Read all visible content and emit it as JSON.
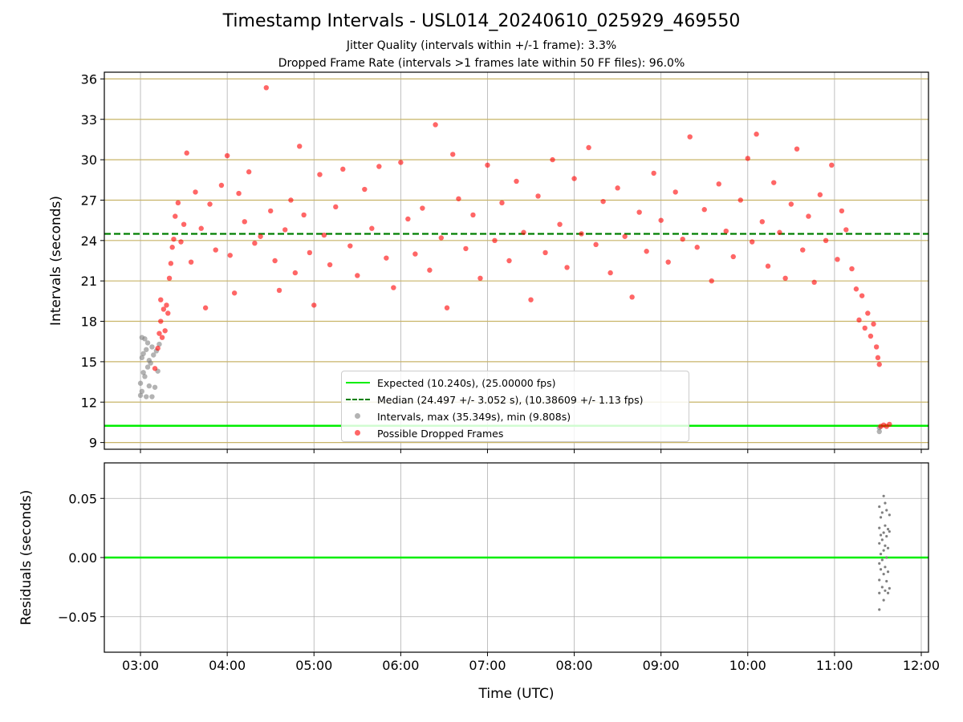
{
  "title": "Timestamp Intervals - USL014_20240610_025929_469550",
  "subtitle_1": "Jitter Quality (intervals within +/-1 frame): 3.3%",
  "subtitle_2": "Dropped Frame Rate (intervals >1 frames late within 50 FF files): 96.0%",
  "colors": {
    "expected": "#00ee00",
    "median": "#007f00",
    "intervals": "#808080",
    "dropped": "#ff0000",
    "hgrid_top": "#c8b468",
    "grid": "#b0b0b0"
  },
  "legend": {
    "expected": "Expected (10.240s), (25.00000 fps)",
    "median": "Median (24.497 +/- 3.052 s), (10.38609 +/- 1.13 fps)",
    "intervals": "Intervals, max (35.349s), min (9.808s)",
    "dropped": "Possible Dropped Frames"
  },
  "chart_data": [
    {
      "type": "scatter",
      "ylabel": "Intervals (seconds)",
      "xlim": [
        "02:35",
        "12:05"
      ],
      "ylim": [
        8.5,
        36.5
      ],
      "y_ticks": [
        9,
        12,
        15,
        18,
        21,
        24,
        27,
        30,
        33,
        36
      ],
      "y_tick_labels": [
        "9",
        "12",
        "15",
        "18",
        "21",
        "24",
        "27",
        "30",
        "33",
        "36"
      ],
      "grid": true,
      "legend_position": "lower-center",
      "expected_line": 10.24,
      "median_line": 24.497,
      "series": [
        {
          "name": "Intervals, max (35.349s), min (9.808s)",
          "points": [
            [
              "03:00",
              12.5
            ],
            [
              "03:00",
              13.4
            ],
            [
              "03:01",
              15.3
            ],
            [
              "03:01",
              16.8
            ],
            [
              "03:01",
              12.8
            ],
            [
              "03:02",
              14.2
            ],
            [
              "03:02",
              15.6
            ],
            [
              "03:03",
              16.7
            ],
            [
              "03:03",
              13.9
            ],
            [
              "03:04",
              15.9
            ],
            [
              "03:04",
              12.4
            ],
            [
              "03:05",
              14.6
            ],
            [
              "03:05",
              16.4
            ],
            [
              "03:06",
              13.2
            ],
            [
              "03:06",
              15.1
            ],
            [
              "03:07",
              14.9
            ],
            [
              "03:08",
              16.1
            ],
            [
              "03:08",
              12.4
            ],
            [
              "03:09",
              15.5
            ],
            [
              "03:10",
              13.1
            ],
            [
              "03:11",
              15.8
            ],
            [
              "03:12",
              14.3
            ],
            [
              "03:13",
              16.3
            ],
            [
              "11:31",
              9.81
            ],
            [
              "11:31",
              10.1
            ]
          ]
        },
        {
          "name": "Possible Dropped Frames",
          "points": [
            [
              "03:10",
              14.5
            ],
            [
              "03:12",
              16.0
            ],
            [
              "03:13",
              17.1
            ],
            [
              "03:14",
              18.0
            ],
            [
              "03:14",
              19.6
            ],
            [
              "03:15",
              16.8
            ],
            [
              "03:16",
              18.9
            ],
            [
              "03:17",
              17.3
            ],
            [
              "03:18",
              19.2
            ],
            [
              "03:19",
              18.6
            ],
            [
              "03:20",
              21.2
            ],
            [
              "03:21",
              22.3
            ],
            [
              "03:22",
              23.5
            ],
            [
              "03:23",
              24.1
            ],
            [
              "03:24",
              25.8
            ],
            [
              "03:26",
              26.8
            ],
            [
              "03:28",
              23.9
            ],
            [
              "03:30",
              25.2
            ],
            [
              "03:32",
              30.5
            ],
            [
              "03:35",
              22.4
            ],
            [
              "03:38",
              27.6
            ],
            [
              "03:42",
              24.9
            ],
            [
              "03:45",
              19.0
            ],
            [
              "03:48",
              26.7
            ],
            [
              "03:52",
              23.3
            ],
            [
              "03:56",
              28.1
            ],
            [
              "04:00",
              30.3
            ],
            [
              "04:02",
              22.9
            ],
            [
              "04:05",
              20.1
            ],
            [
              "04:08",
              27.5
            ],
            [
              "04:12",
              25.4
            ],
            [
              "04:15",
              29.1
            ],
            [
              "04:19",
              23.8
            ],
            [
              "04:23",
              24.3
            ],
            [
              "04:27",
              35.35
            ],
            [
              "04:30",
              26.2
            ],
            [
              "04:33",
              22.5
            ],
            [
              "04:36",
              20.3
            ],
            [
              "04:40",
              24.8
            ],
            [
              "04:44",
              27.0
            ],
            [
              "04:47",
              21.6
            ],
            [
              "04:50",
              31.0
            ],
            [
              "04:53",
              25.9
            ],
            [
              "04:57",
              23.1
            ],
            [
              "05:00",
              19.2
            ],
            [
              "05:04",
              28.9
            ],
            [
              "05:07",
              24.4
            ],
            [
              "05:11",
              22.2
            ],
            [
              "05:15",
              26.5
            ],
            [
              "05:20",
              29.3
            ],
            [
              "05:25",
              23.6
            ],
            [
              "05:30",
              21.4
            ],
            [
              "05:35",
              27.8
            ],
            [
              "05:40",
              24.9
            ],
            [
              "05:45",
              29.5
            ],
            [
              "05:50",
              22.7
            ],
            [
              "05:55",
              20.5
            ],
            [
              "06:00",
              29.8
            ],
            [
              "06:05",
              25.6
            ],
            [
              "06:10",
              23.0
            ],
            [
              "06:15",
              26.4
            ],
            [
              "06:20",
              21.8
            ],
            [
              "06:24",
              32.6
            ],
            [
              "06:28",
              24.2
            ],
            [
              "06:32",
              19.0
            ],
            [
              "06:36",
              30.4
            ],
            [
              "06:40",
              27.1
            ],
            [
              "06:45",
              23.4
            ],
            [
              "06:50",
              25.9
            ],
            [
              "06:55",
              21.2
            ],
            [
              "07:00",
              29.6
            ],
            [
              "07:05",
              24.0
            ],
            [
              "07:10",
              26.8
            ],
            [
              "07:15",
              22.5
            ],
            [
              "07:20",
              28.4
            ],
            [
              "07:25",
              24.6
            ],
            [
              "07:30",
              19.6
            ],
            [
              "07:35",
              27.3
            ],
            [
              "07:40",
              23.1
            ],
            [
              "07:45",
              30.0
            ],
            [
              "07:50",
              25.2
            ],
            [
              "07:55",
              22.0
            ],
            [
              "08:00",
              28.6
            ],
            [
              "08:05",
              24.5
            ],
            [
              "08:10",
              30.9
            ],
            [
              "08:15",
              23.7
            ],
            [
              "08:20",
              26.9
            ],
            [
              "08:25",
              21.6
            ],
            [
              "08:30",
              27.9
            ],
            [
              "08:35",
              24.3
            ],
            [
              "08:40",
              19.8
            ],
            [
              "08:45",
              26.1
            ],
            [
              "08:50",
              23.2
            ],
            [
              "08:55",
              29.0
            ],
            [
              "09:00",
              25.5
            ],
            [
              "09:05",
              22.4
            ],
            [
              "09:10",
              27.6
            ],
            [
              "09:15",
              24.1
            ],
            [
              "09:20",
              31.7
            ],
            [
              "09:25",
              23.5
            ],
            [
              "09:30",
              26.3
            ],
            [
              "09:35",
              21.0
            ],
            [
              "09:40",
              28.2
            ],
            [
              "09:45",
              24.7
            ],
            [
              "09:50",
              22.8
            ],
            [
              "09:55",
              27.0
            ],
            [
              "10:00",
              30.1
            ],
            [
              "10:03",
              23.9
            ],
            [
              "10:06",
              31.9
            ],
            [
              "10:10",
              25.4
            ],
            [
              "10:14",
              22.1
            ],
            [
              "10:18",
              28.3
            ],
            [
              "10:22",
              24.6
            ],
            [
              "10:26",
              21.2
            ],
            [
              "10:30",
              26.7
            ],
            [
              "10:34",
              30.8
            ],
            [
              "10:38",
              23.3
            ],
            [
              "10:42",
              25.8
            ],
            [
              "10:46",
              20.9
            ],
            [
              "10:50",
              27.4
            ],
            [
              "10:54",
              24.0
            ],
            [
              "10:58",
              29.6
            ],
            [
              "11:02",
              22.6
            ],
            [
              "11:05",
              26.2
            ],
            [
              "11:08",
              24.8
            ],
            [
              "11:12",
              21.9
            ],
            [
              "11:15",
              20.4
            ],
            [
              "11:17",
              18.1
            ],
            [
              "11:19",
              19.9
            ],
            [
              "11:21",
              17.5
            ],
            [
              "11:23",
              18.6
            ],
            [
              "11:25",
              16.9
            ],
            [
              "11:27",
              17.8
            ],
            [
              "11:29",
              16.1
            ],
            [
              "11:30",
              15.3
            ],
            [
              "11:31",
              14.8
            ],
            [
              "11:32",
              10.2
            ],
            [
              "11:34",
              10.3
            ],
            [
              "11:36",
              10.2
            ],
            [
              "11:38",
              10.35
            ]
          ]
        }
      ]
    },
    {
      "type": "scatter",
      "xlabel": "Time (UTC)",
      "ylabel": "Residuals (seconds)",
      "xlim": [
        "02:35",
        "12:05"
      ],
      "ylim": [
        -0.08,
        0.08
      ],
      "x_ticks": [
        "03:00",
        "04:00",
        "05:00",
        "06:00",
        "07:00",
        "08:00",
        "09:00",
        "10:00",
        "11:00",
        "12:00"
      ],
      "y_ticks": [
        -0.05,
        0.0,
        0.05
      ],
      "y_tick_labels": [
        "−0.05",
        "0.00",
        "0.05"
      ],
      "grid": true,
      "zero_line": 0.0,
      "points": [
        [
          "11:31",
          -0.044
        ],
        [
          "11:31",
          -0.03
        ],
        [
          "11:31",
          -0.019
        ],
        [
          "11:31",
          -0.005
        ],
        [
          "11:31",
          0.012
        ],
        [
          "11:31",
          0.025
        ],
        [
          "11:31",
          0.043
        ],
        [
          "11:32",
          -0.01
        ],
        [
          "11:32",
          0.003
        ],
        [
          "11:32",
          0.019
        ],
        [
          "11:32",
          0.034
        ],
        [
          "11:33",
          -0.025
        ],
        [
          "11:33",
          -0.002
        ],
        [
          "11:33",
          0.015
        ],
        [
          "11:33",
          0.038
        ],
        [
          "11:34",
          -0.036
        ],
        [
          "11:34",
          -0.014
        ],
        [
          "11:34",
          0.006
        ],
        [
          "11:34",
          0.021
        ],
        [
          "11:34",
          0.052
        ],
        [
          "11:35",
          -0.028
        ],
        [
          "11:35",
          -0.008
        ],
        [
          "11:35",
          0.01
        ],
        [
          "11:35",
          0.027
        ],
        [
          "11:35",
          0.046
        ],
        [
          "11:36",
          -0.02
        ],
        [
          "11:36",
          0.0
        ],
        [
          "11:36",
          0.018
        ],
        [
          "11:36",
          0.04
        ],
        [
          "11:37",
          -0.03
        ],
        [
          "11:37",
          -0.012
        ],
        [
          "11:37",
          0.008
        ],
        [
          "11:37",
          0.024
        ],
        [
          "11:38",
          -0.026
        ],
        [
          "11:38",
          0.022
        ],
        [
          "11:38",
          0.036
        ]
      ]
    }
  ]
}
